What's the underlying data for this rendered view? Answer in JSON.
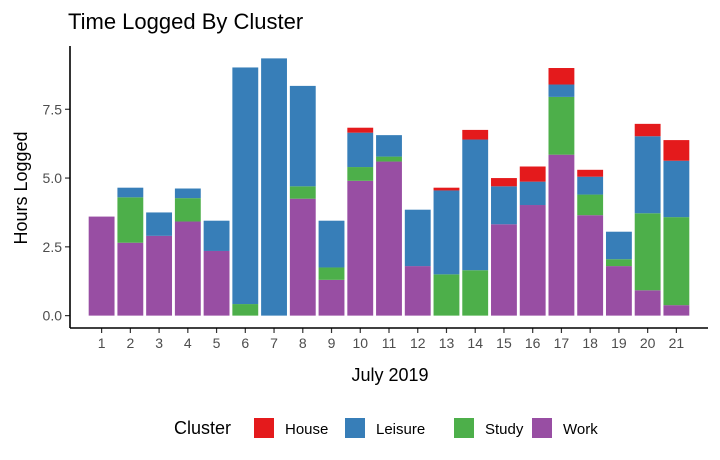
{
  "chart_data": {
    "type": "bar",
    "stacked": true,
    "title": "Time Logged By Cluster",
    "xlabel": "July 2019",
    "ylabel": "Hours Logged",
    "categories": [
      "1",
      "2",
      "3",
      "4",
      "5",
      "6",
      "7",
      "8",
      "9",
      "10",
      "11",
      "12",
      "13",
      "14",
      "15",
      "16",
      "17",
      "18",
      "19",
      "20",
      "21"
    ],
    "ylim": [
      -0.45,
      9.8
    ],
    "yticks": [
      0.0,
      2.5,
      5.0,
      7.5
    ],
    "ytick_labels": [
      "0.0",
      "2.5",
      "5.0",
      "7.5"
    ],
    "series": [
      {
        "name": "Work",
        "color": "#984EA3",
        "values": [
          3.6,
          2.65,
          2.9,
          3.42,
          2.35,
          0,
          0,
          4.25,
          1.3,
          4.9,
          5.6,
          1.8,
          0,
          0,
          3.32,
          4.02,
          5.85,
          3.65,
          1.8,
          0.92,
          0.38
        ]
      },
      {
        "name": "Study",
        "color": "#4DAF4A",
        "values": [
          0,
          1.65,
          0,
          0.85,
          0,
          0.42,
          0,
          0.45,
          0.45,
          0.5,
          0.18,
          0,
          1.5,
          1.65,
          0,
          0,
          2.1,
          0.75,
          0.25,
          2.8,
          3.2
        ]
      },
      {
        "name": "Leisure",
        "color": "#377EB8",
        "values": [
          0,
          0.35,
          0.85,
          0.35,
          1.1,
          8.6,
          9.35,
          3.65,
          1.7,
          1.25,
          0.78,
          2.05,
          3.05,
          4.75,
          1.38,
          0.85,
          0.45,
          0.65,
          1.0,
          2.8,
          2.05
        ]
      },
      {
        "name": "House",
        "color": "#E41A1C",
        "values": [
          0,
          0,
          0,
          0,
          0,
          0,
          0,
          0,
          0,
          0.18,
          0,
          0,
          0.1,
          0.35,
          0.3,
          0.55,
          0.6,
          0.25,
          0,
          0.45,
          0.75
        ]
      }
    ],
    "legend": {
      "title": "Cluster",
      "position": "bottom",
      "entries": [
        "House",
        "Leisure",
        "Study",
        "Work"
      ]
    },
    "grid": false
  }
}
